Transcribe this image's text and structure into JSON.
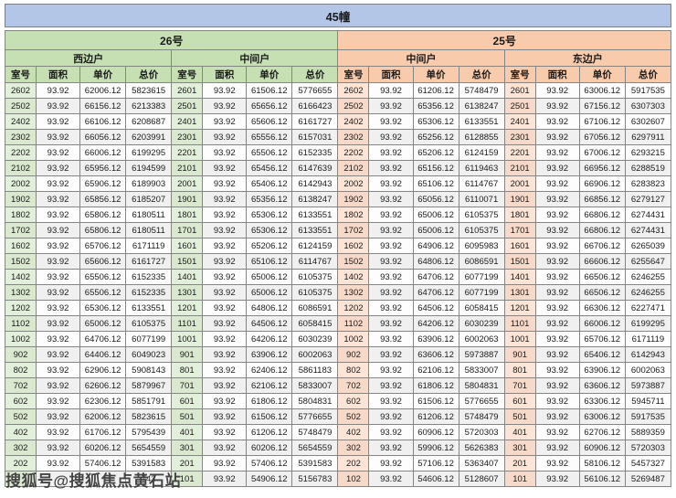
{
  "header": {
    "building": "45幢",
    "groups": [
      {
        "name": "26号",
        "sections": [
          "西边户",
          "中间户"
        ]
      },
      {
        "name": "25号",
        "sections": [
          "中间户",
          "东边户"
        ]
      }
    ]
  },
  "watermark": {
    "text": "搜狐号@搜狐焦点黄石站"
  },
  "colors": {
    "title_bar": "#b4c6e7",
    "group_26_header": "#c6e0b4",
    "group_26_room_cell": "#e2efda",
    "group_25_header": "#f8cbad",
    "group_25_room_cell": "#fce4d6",
    "row_stripe": "#f0f0f0",
    "grid_border": "#858585"
  },
  "chart_data": {
    "type": "table",
    "title": "45幢",
    "column_headers": [
      "室号",
      "面积",
      "单价",
      "总价"
    ],
    "section_order": [
      "26号-西边户",
      "26号-中间户",
      "25号-中间户",
      "25号-东边户"
    ],
    "note": "Bottom-left row cells are covered by the site watermark; only the trailing digits 743 are visible.",
    "rows": [
      [
        [
          "2602",
          "93.92",
          "62006.12",
          "5823615"
        ],
        [
          "2601",
          "93.92",
          "61506.12",
          "5776655"
        ],
        [
          "2602",
          "93.92",
          "61206.12",
          "5748479"
        ],
        [
          "2601",
          "93.92",
          "63006.12",
          "5917535"
        ]
      ],
      [
        [
          "2502",
          "93.92",
          "66156.12",
          "6213383"
        ],
        [
          "2501",
          "93.92",
          "65656.12",
          "6166423"
        ],
        [
          "2502",
          "93.92",
          "65356.12",
          "6138247"
        ],
        [
          "2501",
          "93.92",
          "67156.12",
          "6307303"
        ]
      ],
      [
        [
          "2402",
          "93.92",
          "66106.12",
          "6208687"
        ],
        [
          "2401",
          "93.92",
          "65606.12",
          "6161727"
        ],
        [
          "2402",
          "93.92",
          "65306.12",
          "6133551"
        ],
        [
          "2401",
          "93.92",
          "67106.12",
          "6302607"
        ]
      ],
      [
        [
          "2302",
          "93.92",
          "66056.12",
          "6203991"
        ],
        [
          "2301",
          "93.92",
          "65556.12",
          "6157031"
        ],
        [
          "2302",
          "93.92",
          "65256.12",
          "6128855"
        ],
        [
          "2301",
          "93.92",
          "67056.12",
          "6297911"
        ]
      ],
      [
        [
          "2202",
          "93.92",
          "66006.12",
          "6199295"
        ],
        [
          "2201",
          "93.92",
          "65506.12",
          "6152335"
        ],
        [
          "2202",
          "93.92",
          "65206.12",
          "6124159"
        ],
        [
          "2201",
          "93.92",
          "67006.12",
          "6293215"
        ]
      ],
      [
        [
          "2102",
          "93.92",
          "65956.12",
          "6194599"
        ],
        [
          "2101",
          "93.92",
          "65456.12",
          "6147639"
        ],
        [
          "2102",
          "93.92",
          "65156.12",
          "6119463"
        ],
        [
          "2101",
          "93.92",
          "66956.12",
          "6288519"
        ]
      ],
      [
        [
          "2002",
          "93.92",
          "65906.12",
          "6189903"
        ],
        [
          "2001",
          "93.92",
          "65406.12",
          "6142943"
        ],
        [
          "2002",
          "93.92",
          "65106.12",
          "6114767"
        ],
        [
          "2001",
          "93.92",
          "66906.12",
          "6283823"
        ]
      ],
      [
        [
          "1902",
          "93.92",
          "65856.12",
          "6185207"
        ],
        [
          "1901",
          "93.92",
          "65356.12",
          "6138247"
        ],
        [
          "1902",
          "93.92",
          "65056.12",
          "6110071"
        ],
        [
          "1901",
          "93.92",
          "66856.12",
          "6279127"
        ]
      ],
      [
        [
          "1802",
          "93.92",
          "65806.12",
          "6180511"
        ],
        [
          "1801",
          "93.92",
          "65306.12",
          "6133551"
        ],
        [
          "1802",
          "93.92",
          "65006.12",
          "6105375"
        ],
        [
          "1801",
          "93.92",
          "66806.12",
          "6274431"
        ]
      ],
      [
        [
          "1702",
          "93.92",
          "65806.12",
          "6180511"
        ],
        [
          "1701",
          "93.92",
          "65306.12",
          "6133551"
        ],
        [
          "1702",
          "93.92",
          "65006.12",
          "6105375"
        ],
        [
          "1701",
          "93.92",
          "66806.12",
          "6274431"
        ]
      ],
      [
        [
          "1602",
          "93.92",
          "65706.12",
          "6171119"
        ],
        [
          "1601",
          "93.92",
          "65206.12",
          "6124159"
        ],
        [
          "1602",
          "93.92",
          "64906.12",
          "6095983"
        ],
        [
          "1601",
          "93.92",
          "66706.12",
          "6265039"
        ]
      ],
      [
        [
          "1502",
          "93.92",
          "65606.12",
          "6161727"
        ],
        [
          "1501",
          "93.92",
          "65106.12",
          "6114767"
        ],
        [
          "1502",
          "93.92",
          "64806.12",
          "6086591"
        ],
        [
          "1501",
          "93.92",
          "66606.12",
          "6255647"
        ]
      ],
      [
        [
          "1402",
          "93.92",
          "65506.12",
          "6152335"
        ],
        [
          "1401",
          "93.92",
          "65006.12",
          "6105375"
        ],
        [
          "1402",
          "93.92",
          "64706.12",
          "6077199"
        ],
        [
          "1401",
          "93.92",
          "66506.12",
          "6246255"
        ]
      ],
      [
        [
          "1302",
          "93.92",
          "65506.12",
          "6152335"
        ],
        [
          "1301",
          "93.92",
          "65006.12",
          "6105375"
        ],
        [
          "1302",
          "93.92",
          "64706.12",
          "6077199"
        ],
        [
          "1301",
          "93.92",
          "66506.12",
          "6246255"
        ]
      ],
      [
        [
          "1202",
          "93.92",
          "65306.12",
          "6133551"
        ],
        [
          "1201",
          "93.92",
          "64806.12",
          "6086591"
        ],
        [
          "1202",
          "93.92",
          "64506.12",
          "6058415"
        ],
        [
          "1201",
          "93.92",
          "66306.12",
          "6227471"
        ]
      ],
      [
        [
          "1102",
          "93.92",
          "65006.12",
          "6105375"
        ],
        [
          "1101",
          "93.92",
          "64506.12",
          "6058415"
        ],
        [
          "1102",
          "93.92",
          "64206.12",
          "6030239"
        ],
        [
          "1101",
          "93.92",
          "66006.12",
          "6199295"
        ]
      ],
      [
        [
          "1002",
          "93.92",
          "64706.12",
          "6077199"
        ],
        [
          "1001",
          "93.92",
          "64206.12",
          "6030239"
        ],
        [
          "1002",
          "93.92",
          "63906.12",
          "6002063"
        ],
        [
          "1001",
          "93.92",
          "65706.12",
          "6171119"
        ]
      ],
      [
        [
          "902",
          "93.92",
          "64406.12",
          "6049023"
        ],
        [
          "901",
          "93.92",
          "63906.12",
          "6002063"
        ],
        [
          "902",
          "93.92",
          "63606.12",
          "5973887"
        ],
        [
          "901",
          "93.92",
          "65406.12",
          "6142943"
        ]
      ],
      [
        [
          "802",
          "93.92",
          "62906.12",
          "5908143"
        ],
        [
          "801",
          "93.92",
          "62406.12",
          "5861183"
        ],
        [
          "802",
          "93.92",
          "62106.12",
          "5833007"
        ],
        [
          "801",
          "93.92",
          "63906.12",
          "6002063"
        ]
      ],
      [
        [
          "702",
          "93.92",
          "62606.12",
          "5879967"
        ],
        [
          "701",
          "93.92",
          "62106.12",
          "5833007"
        ],
        [
          "702",
          "93.92",
          "61806.12",
          "5804831"
        ],
        [
          "701",
          "93.92",
          "63606.12",
          "5973887"
        ]
      ],
      [
        [
          "602",
          "93.92",
          "62306.12",
          "5851791"
        ],
        [
          "601",
          "93.92",
          "61806.12",
          "5804831"
        ],
        [
          "602",
          "93.92",
          "61506.12",
          "5776655"
        ],
        [
          "601",
          "93.92",
          "63306.12",
          "5945711"
        ]
      ],
      [
        [
          "502",
          "93.92",
          "62006.12",
          "5823615"
        ],
        [
          "501",
          "93.92",
          "61506.12",
          "5776655"
        ],
        [
          "502",
          "93.92",
          "61206.12",
          "5748479"
        ],
        [
          "501",
          "93.92",
          "63006.12",
          "5917535"
        ]
      ],
      [
        [
          "402",
          "93.92",
          "61706.12",
          "5795439"
        ],
        [
          "401",
          "93.92",
          "61206.12",
          "5748479"
        ],
        [
          "402",
          "93.92",
          "60906.12",
          "5720303"
        ],
        [
          "401",
          "93.92",
          "62706.12",
          "5889359"
        ]
      ],
      [
        [
          "302",
          "93.92",
          "60206.12",
          "5654559"
        ],
        [
          "301",
          "93.92",
          "60206.12",
          "5654559"
        ],
        [
          "302",
          "93.92",
          "59906.12",
          "5626383"
        ],
        [
          "301",
          "93.92",
          "60906.12",
          "5720303"
        ]
      ],
      [
        [
          "202",
          "93.92",
          "57406.12",
          "5391583"
        ],
        [
          "201",
          "93.92",
          "57406.12",
          "5391583"
        ],
        [
          "202",
          "93.92",
          "57106.12",
          "5363407"
        ],
        [
          "201",
          "93.92",
          "58106.12",
          "5457327"
        ]
      ],
      [
        [
          "",
          "",
          "",
          "743"
        ],
        [
          "101",
          "93.92",
          "54906.12",
          "5156783"
        ],
        [
          "102",
          "93.92",
          "54606.12",
          "5128607"
        ],
        [
          "101",
          "93.92",
          "56106.12",
          "5269487"
        ]
      ]
    ]
  }
}
